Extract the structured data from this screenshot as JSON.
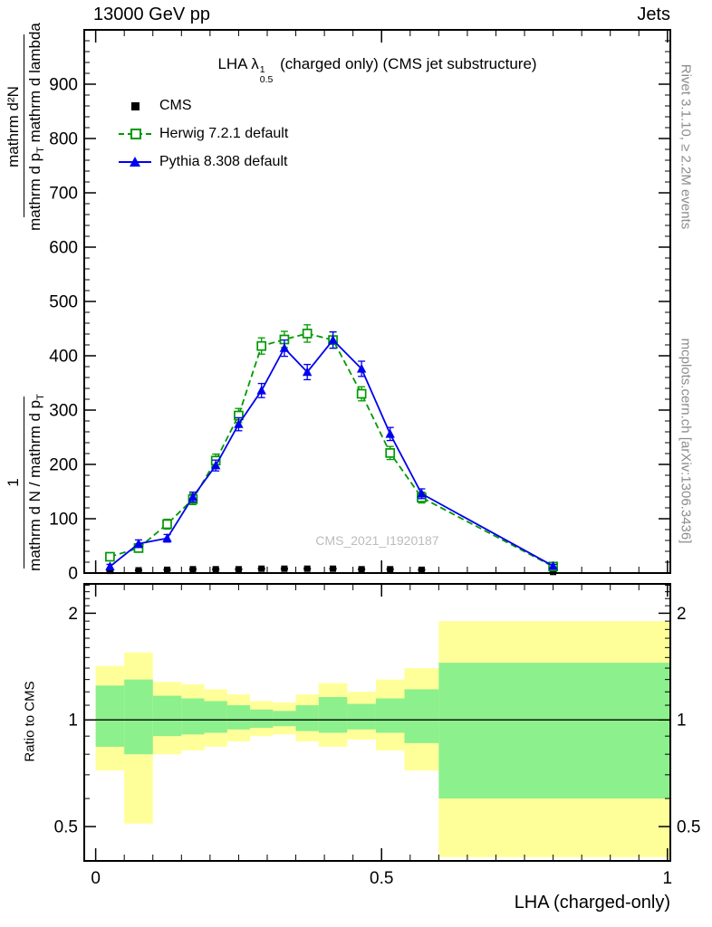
{
  "header": {
    "left": "13000 GeV pp",
    "right": "Jets"
  },
  "plot_title": {
    "prefix": "LHA ",
    "lambda": "λ",
    "sup": "1",
    "sub": "0.5",
    "suffix": " (charged only) (CMS jet substructure)"
  },
  "legend": [
    {
      "label": "CMS"
    },
    {
      "label": "Herwig 7.2.1 default"
    },
    {
      "label": "Pythia 8.308 default"
    }
  ],
  "watermark": "CMS_2021_I1920187",
  "right_texts": {
    "top": "Rivet 3.1.10, ≥ 2.2M events",
    "bottom": "mcplots.cern.ch [arXiv:1306.3436]"
  },
  "ylabel": {
    "num_top": "mathrm d²N",
    "den_top_pre": "mathrm d p",
    "den_top_sub": "T",
    "den_top_post": " mathrm d lambda",
    "num_bottom": "1",
    "den_bottom_pre": "mathrm d N / mathrm d p",
    "den_bottom_sub": "T"
  },
  "ratio_label": "Ratio to CMS",
  "xaxis": {
    "title": "LHA (charged-only)"
  },
  "chart_data": {
    "type": "line",
    "title": "LHA lambda^1_0.5 (charged only) (CMS jet substructure)",
    "xlabel": "LHA (charged-only)",
    "ylabel": "1/(dN/dp_T) d^2N/(dp_T dlambda)",
    "xlim": [
      -0.02,
      1.005
    ],
    "ylim": [
      0,
      1000
    ],
    "yticks": [
      0,
      100,
      200,
      300,
      400,
      500,
      600,
      700,
      800,
      900
    ],
    "xticks": [
      {
        "v": 0,
        "label": "0"
      },
      {
        "v": 0.5,
        "label": "0.5"
      },
      {
        "v": 1,
        "label": "1"
      }
    ],
    "x": [
      0.025,
      0.075,
      0.125,
      0.17,
      0.21,
      0.25,
      0.29,
      0.33,
      0.37,
      0.415,
      0.465,
      0.515,
      0.57,
      0.8
    ],
    "series": [
      {
        "name": "CMS",
        "color": "#000000",
        "marker": "square-filled",
        "line": "none",
        "values": [
          4,
          5,
          6,
          7,
          7,
          7,
          8,
          8,
          8,
          8,
          7,
          7,
          6,
          2
        ],
        "errors": [
          1,
          1,
          1,
          1,
          1,
          1,
          1,
          1,
          1,
          1,
          1,
          1,
          1,
          1
        ]
      },
      {
        "name": "Herwig 7.2.1 default",
        "color": "#009900",
        "marker": "square-open",
        "line": "dashed",
        "values": [
          30,
          46,
          90,
          136,
          207,
          290,
          418,
          430,
          441,
          429,
          330,
          221,
          139,
          12
        ],
        "errors": [
          7,
          7,
          9,
          10,
          12,
          13,
          15,
          15,
          16,
          15,
          13,
          12,
          10,
          3
        ]
      },
      {
        "name": "Pythia 8.308 default",
        "color": "#0000ee",
        "marker": "triangle-filled",
        "line": "solid",
        "values": [
          12,
          54,
          64,
          140,
          198,
          274,
          336,
          414,
          370,
          429,
          376,
          256,
          146,
          13
        ],
        "errors": [
          4,
          7,
          7,
          9,
          10,
          12,
          13,
          15,
          14,
          15,
          14,
          12,
          9,
          3
        ]
      }
    ],
    "ratio": {
      "ylabel": "Ratio to CMS",
      "ylim": [
        0.4,
        2.42
      ],
      "yticks": [
        {
          "v": 0.5,
          "label": "0.5"
        },
        {
          "v": 1,
          "label": "1"
        },
        {
          "v": 2,
          "label": "2"
        }
      ],
      "reference_line": 1,
      "bin_edges": [
        0,
        0.05,
        0.1,
        0.15,
        0.19,
        0.23,
        0.27,
        0.31,
        0.35,
        0.39,
        0.44,
        0.49,
        0.54,
        0.6,
        1.0
      ],
      "yellow_band": [
        [
          0.72,
          1.42
        ],
        [
          0.51,
          1.55
        ],
        [
          0.8,
          1.28
        ],
        [
          0.82,
          1.26
        ],
        [
          0.84,
          1.22
        ],
        [
          0.87,
          1.18
        ],
        [
          0.9,
          1.13
        ],
        [
          0.91,
          1.12
        ],
        [
          0.87,
          1.18
        ],
        [
          0.84,
          1.27
        ],
        [
          0.88,
          1.2
        ],
        [
          0.82,
          1.3
        ],
        [
          0.72,
          1.4
        ],
        [
          0.41,
          1.9
        ]
      ],
      "green_band": [
        [
          0.84,
          1.25
        ],
        [
          0.8,
          1.3
        ],
        [
          0.9,
          1.17
        ],
        [
          0.91,
          1.15
        ],
        [
          0.92,
          1.13
        ],
        [
          0.94,
          1.1
        ],
        [
          0.95,
          1.07
        ],
        [
          0.96,
          1.06
        ],
        [
          0.93,
          1.1
        ],
        [
          0.92,
          1.16
        ],
        [
          0.94,
          1.11
        ],
        [
          0.92,
          1.15
        ],
        [
          0.86,
          1.22
        ],
        [
          0.6,
          1.45
        ]
      ]
    },
    "colors": {
      "cms": "#000000",
      "herwig": "#009900",
      "pythia": "#0000ee",
      "band_yellow": "#ffff99",
      "band_green": "#8cf08c",
      "watermark": "#bcbcbc",
      "side_text": "#8c8c8c"
    }
  }
}
